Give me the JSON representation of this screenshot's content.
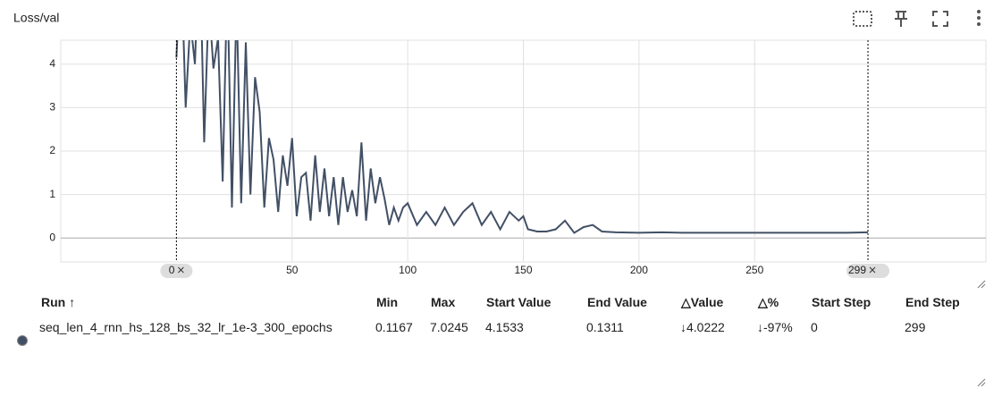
{
  "header": {
    "title": "Loss/val"
  },
  "chart_data": {
    "type": "line",
    "x": [
      0,
      2,
      4,
      6,
      8,
      10,
      12,
      14,
      16,
      18,
      20,
      22,
      24,
      26,
      28,
      30,
      32,
      34,
      36,
      38,
      40,
      42,
      44,
      46,
      48,
      50,
      52,
      54,
      56,
      58,
      60,
      62,
      64,
      66,
      68,
      70,
      72,
      74,
      76,
      78,
      80,
      82,
      84,
      86,
      88,
      90,
      92,
      94,
      96,
      98,
      100,
      104,
      108,
      112,
      116,
      120,
      124,
      128,
      132,
      136,
      140,
      144,
      148,
      150,
      152,
      156,
      160,
      164,
      168,
      172,
      176,
      180,
      184,
      190,
      200,
      210,
      220,
      230,
      240,
      250,
      260,
      270,
      280,
      290,
      299
    ],
    "series": [
      {
        "color": "#425066",
        "values": [
          4.15,
          6.5,
          3.0,
          5.0,
          4.0,
          7.0,
          2.2,
          5.5,
          3.9,
          4.6,
          1.3,
          6.0,
          0.7,
          5.5,
          0.8,
          4.5,
          1.0,
          3.7,
          2.9,
          0.7,
          2.3,
          1.8,
          0.6,
          1.9,
          1.2,
          2.3,
          0.5,
          1.4,
          1.5,
          0.4,
          1.9,
          0.6,
          1.6,
          0.5,
          1.4,
          0.3,
          1.4,
          0.6,
          1.1,
          0.5,
          2.2,
          0.4,
          1.6,
          0.8,
          1.4,
          0.9,
          0.3,
          0.7,
          0.4,
          0.7,
          0.8,
          0.3,
          0.6,
          0.3,
          0.7,
          0.3,
          0.6,
          0.8,
          0.3,
          0.6,
          0.2,
          0.6,
          0.4,
          0.5,
          0.2,
          0.15,
          0.15,
          0.2,
          0.4,
          0.12,
          0.25,
          0.3,
          0.15,
          0.13,
          0.12,
          0.13,
          0.12,
          0.12,
          0.12,
          0.12,
          0.12,
          0.12,
          0.12,
          0.12,
          0.1311
        ]
      }
    ],
    "xlim": [
      -50,
      350
    ],
    "ylim": [
      -0.55,
      4.55
    ],
    "xticks": [
      50,
      100,
      150,
      200,
      250
    ],
    "yticks": [
      0,
      1,
      2,
      3,
      4
    ],
    "grid": true,
    "step_markers": [
      0,
      299
    ]
  },
  "table": {
    "headers": [
      "Run ↑",
      "Min",
      "Max",
      "Start Value",
      "End Value",
      "△Value",
      "△%",
      "Start Step",
      "End Step"
    ],
    "rows": [
      [
        "seq_len_4_rnn_hs_128_bs_32_lr_1e-3_300_epochs",
        "0.1167",
        "7.0245",
        "4.1533",
        "0.1311",
        "↓4.0222",
        "↓-97%",
        "0",
        "299"
      ]
    ]
  }
}
